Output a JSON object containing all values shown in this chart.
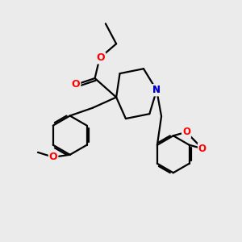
{
  "background_color": "#ebebeb",
  "bond_color": "#000000",
  "o_color": "#ff0000",
  "n_color": "#0000cc",
  "line_width": 1.6,
  "figsize": [
    3.0,
    3.0
  ],
  "dpi": 100,
  "xlim": [
    0,
    10
  ],
  "ylim": [
    0,
    10
  ]
}
